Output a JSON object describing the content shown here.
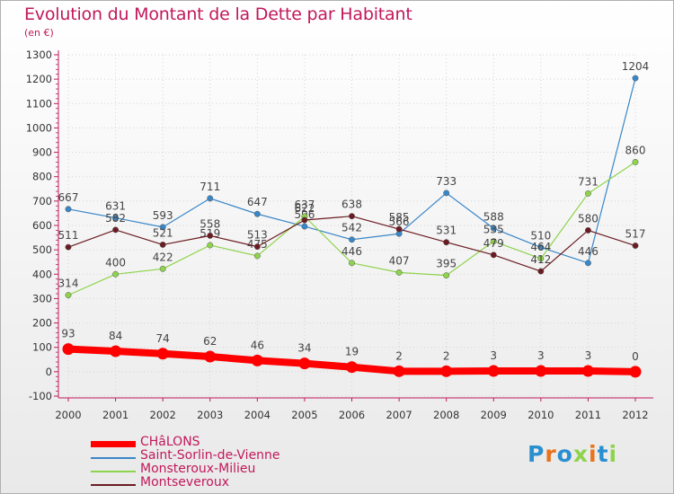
{
  "title": "Evolution du Montant de la Dette par Habitant",
  "subtitle": "(en €)",
  "logo_text": "Proxiti",
  "chart_data": {
    "type": "line",
    "x": [
      "2000",
      "2001",
      "2002",
      "2003",
      "2004",
      "2005",
      "2006",
      "2007",
      "2008",
      "2009",
      "2010",
      "2011",
      "2012"
    ],
    "ylim": [
      -100,
      1300
    ],
    "yticks": [
      "-100",
      "0",
      "100",
      "200",
      "300",
      "400",
      "500",
      "600",
      "700",
      "800",
      "900",
      "1000",
      "1100",
      "1200",
      "1300"
    ],
    "grid": true,
    "legend_position": "bottom-left",
    "series": [
      {
        "name": "CHâLONS",
        "color": "#ff0000",
        "values": [
          93,
          84,
          74,
          62,
          46,
          34,
          19,
          2,
          2,
          3,
          3,
          3,
          0
        ],
        "labels": [
          "93",
          "84",
          "74",
          "62",
          "46",
          "34",
          "19",
          "2",
          "2",
          "3",
          "3",
          "3",
          "0"
        ]
      },
      {
        "name": "Saint-Sorlin-de-Vienne",
        "color": "#3a87c8",
        "values": [
          667,
          631,
          593,
          711,
          647,
          596,
          542,
          566,
          733,
          588,
          510,
          446,
          1204
        ],
        "labels": [
          "667",
          "631",
          "593",
          "711",
          "647",
          "596",
          "542",
          "566",
          "733",
          "588",
          "510",
          "446",
          "1204"
        ]
      },
      {
        "name": "Monsteroux-Milieu",
        "color": "#8ed34c",
        "values": [
          314,
          400,
          422,
          519,
          475,
          637,
          446,
          407,
          395,
          535,
          464,
          731,
          860
        ],
        "labels": [
          "314",
          "400",
          "422",
          "519",
          "475",
          "637",
          "446",
          "407",
          "395",
          "535",
          "464",
          "731",
          "860"
        ]
      },
      {
        "name": "Montseveroux",
        "color": "#6b1c22",
        "values": [
          511,
          582,
          521,
          558,
          513,
          622,
          638,
          585,
          531,
          479,
          412,
          580,
          517
        ],
        "labels": [
          "511",
          "582",
          "521",
          "558",
          "513",
          "622",
          "638",
          "585",
          "531",
          "479",
          "412",
          "580",
          "517"
        ]
      }
    ]
  }
}
